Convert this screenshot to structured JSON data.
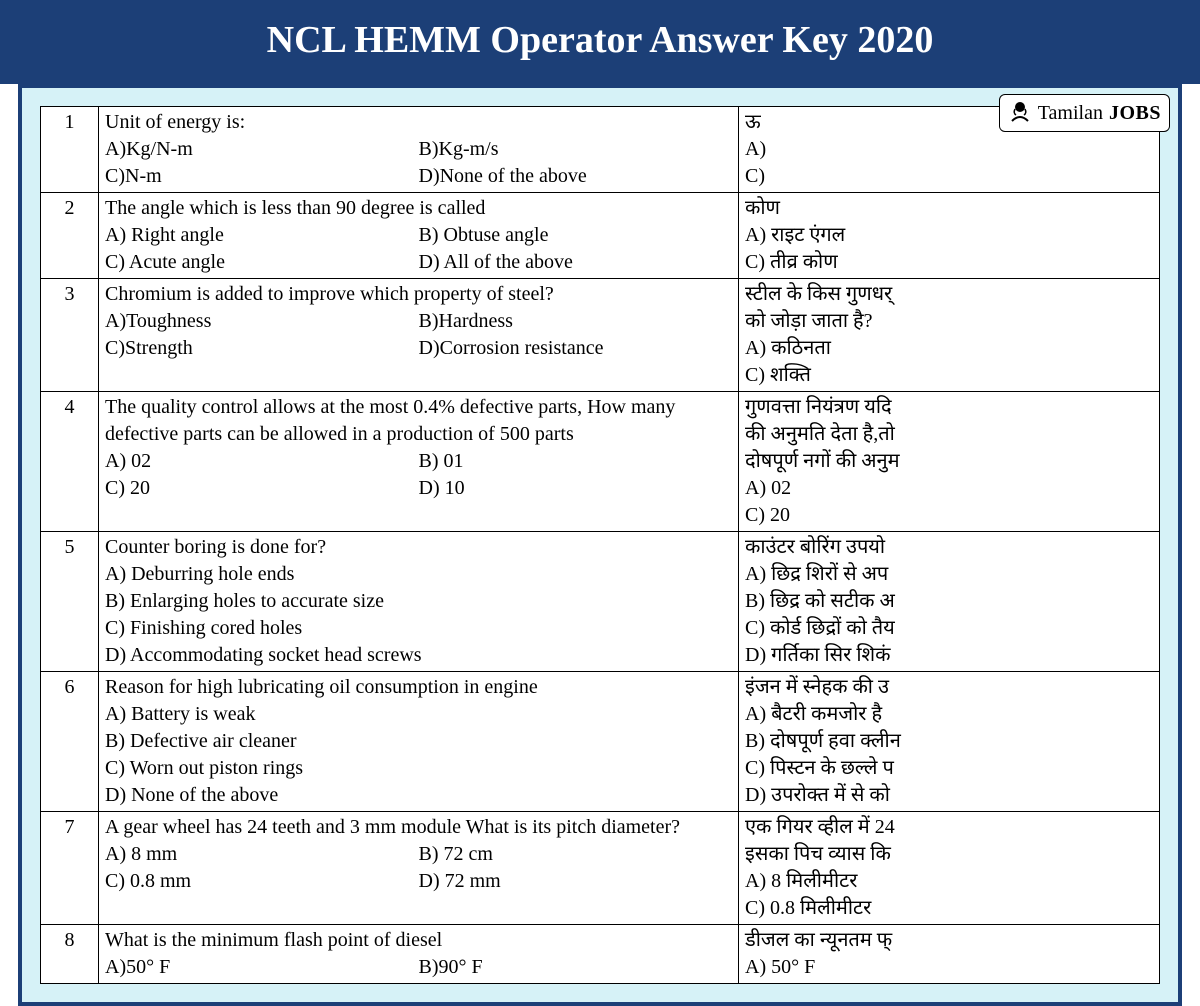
{
  "header": {
    "title": "NCL HEMM Operator Answer Key 2020",
    "bg_color": "#1c3f77",
    "text_color": "#ffffff",
    "font_size": 38
  },
  "frame": {
    "bg_color": "#d6f2f7",
    "border_color": "#1c3f77",
    "border_width": 4
  },
  "logo": {
    "text1": "Tamilan",
    "text2": "JOBS"
  },
  "columns": {
    "num_width": 58,
    "en_width": 640
  },
  "questions": [
    {
      "num": "1",
      "en_q": "Unit of energy is:",
      "en_opts": [
        "A)Kg/N-m",
        "B)Kg-m/s",
        "C)N-m",
        "D)None of the above"
      ],
      "en_layout": "two-col",
      "hi_q": "ऊ",
      "hi_opts": [
        "A)",
        "C)"
      ]
    },
    {
      "num": "2",
      "en_q": "The angle which is less than 90 degree is called",
      "en_opts": [
        "A) Right angle",
        "B) Obtuse angle",
        "C) Acute angle",
        "D) All of the above"
      ],
      "en_layout": "two-col",
      "hi_q": "कोण",
      "hi_opts": [
        "A) राइट एंगल",
        "C) तीव्र कोण"
      ]
    },
    {
      "num": "3",
      "en_q": "Chromium is added to improve which property of steel?",
      "en_opts": [
        "A)Toughness",
        "B)Hardness",
        "C)Strength",
        "D)Corrosion resistance"
      ],
      "en_layout": "two-col",
      "hi_q": "स्टील के  किस गुणधर्",
      "hi_opts": [
        "को जोड़ा जाता है?",
        "A) कठिनता",
        "C) शक्ति"
      ]
    },
    {
      "num": "4",
      "en_q": "The quality control allows at the most 0.4% defective parts, How many defective parts can be allowed in a production of 500 parts",
      "en_opts": [
        "A) 02",
        "B) 01",
        "C) 20",
        "D) 10"
      ],
      "en_layout": "two-col",
      "hi_q": "गुणवत्ता नियंत्रण यदि",
      "hi_opts": [
        "की अनुमति देता है,तो",
        "दोषपूर्ण नगों की अनुम",
        "A) 02",
        "C) 20"
      ]
    },
    {
      "num": "5",
      "en_q": "Counter boring is done for?",
      "en_opts": [
        "A)  Deburring hole ends",
        "B) Enlarging holes to accurate size",
        "C) Finishing cored holes",
        "D) Accommodating socket head screws"
      ],
      "en_layout": "one-col",
      "hi_q": "काउंटर बोरिंग उपयो",
      "hi_opts": [
        "A)  छिद्र शिरों  से अप",
        "B) छिद्र को सटीक अ",
        "C) कोर्ड छिद्रों को तैय",
        "D) गर्तिका सिर शिकं"
      ]
    },
    {
      "num": "6",
      "en_q": "Reason for high lubricating oil consumption in engine",
      "en_opts": [
        "A)   Battery is weak",
        "B)   Defective air cleaner",
        "C)   Worn out piston rings",
        "D)   None of the above"
      ],
      "en_layout": "one-col",
      "hi_q": "इंजन में स्नेहक  की उ",
      "hi_opts": [
        "A)  बैटरी कमजोर है",
        "B)  दोषपूर्ण हवा क्लीन",
        "C)  पिस्टन के छल्ले प",
        "D)  उपरोक्त में से को"
      ]
    },
    {
      "num": "7",
      "en_q": "A gear wheel has 24 teeth and 3 mm module What is its pitch diameter?",
      "en_opts": [
        "A) 8 mm",
        "B) 72 cm",
        "C) 0.8 mm",
        "D) 72 mm"
      ],
      "en_layout": "two-col",
      "hi_q": "एक गियर व्हील में 24",
      "hi_opts": [
        "इसका  पिच व्यास कि",
        "A) 8   मिलीमीटर",
        "C) 0.8 मिलीमीटर"
      ]
    },
    {
      "num": "8",
      "en_q": "What is the minimum flash point of diesel",
      "en_opts": [
        "A)50° F",
        "B)90° F"
      ],
      "en_layout": "two-col",
      "hi_q": "डीजल का न्यूनतम फ्",
      "hi_opts": [
        "A) 50° F"
      ]
    }
  ]
}
